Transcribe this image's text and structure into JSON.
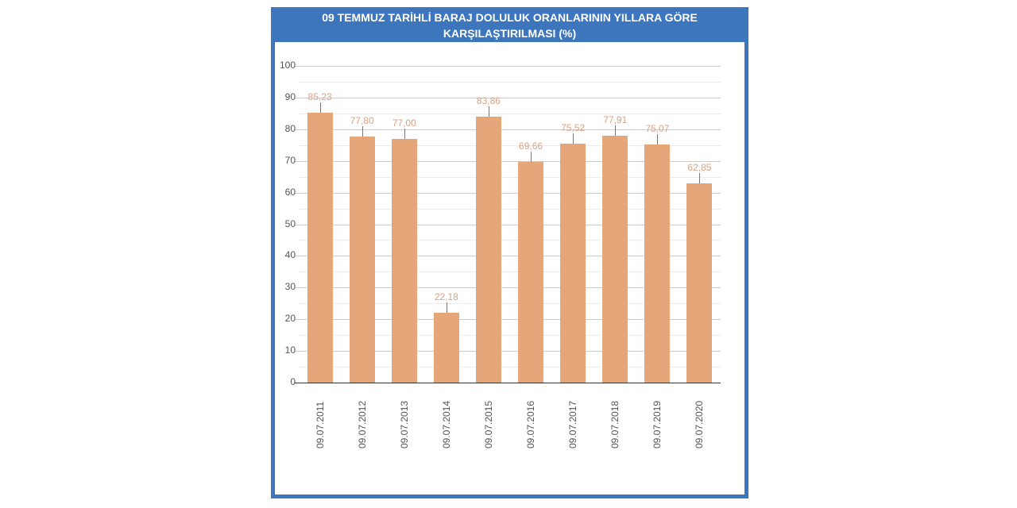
{
  "chart_data": {
    "type": "bar",
    "title": "09 TEMMUZ TARİHLİ BARAJ DOLULUK ORANLARININ YILLARA GÖRE KARŞILAŞTIRILMASI (%)",
    "title_line1": "09 TEMMUZ TARİHLİ BARAJ DOLULUK ORANLARININ YILLARA GÖRE",
    "title_line2": "KARŞILAŞTIRILMASI (%)",
    "categories": [
      "09.07.2011",
      "09.07.2012",
      "09.07.2013",
      "09.07.2014",
      "09.07.2015",
      "09.07.2016",
      "09.07.2017",
      "09.07.2018",
      "09.07.2019",
      "09.07.2020"
    ],
    "values": [
      85.23,
      77.8,
      77.0,
      22.18,
      83.86,
      69.66,
      75.52,
      77.91,
      75.07,
      62.85
    ],
    "value_labels": [
      "85,23",
      "77,80",
      "77,00",
      "22,18",
      "83,86",
      "69,66",
      "75,52",
      "77,91",
      "75,07",
      "62,85"
    ],
    "xlabel": "",
    "ylabel": "",
    "ylim": [
      0,
      100
    ],
    "yticks": [
      "0",
      "10",
      "20",
      "30",
      "40",
      "50",
      "60",
      "70",
      "80",
      "90",
      "100"
    ],
    "grid": true,
    "legend": "none",
    "colors": {
      "bar": "#e5a67a",
      "frame": "#3d76bd",
      "value_label": "#d9a385"
    }
  }
}
